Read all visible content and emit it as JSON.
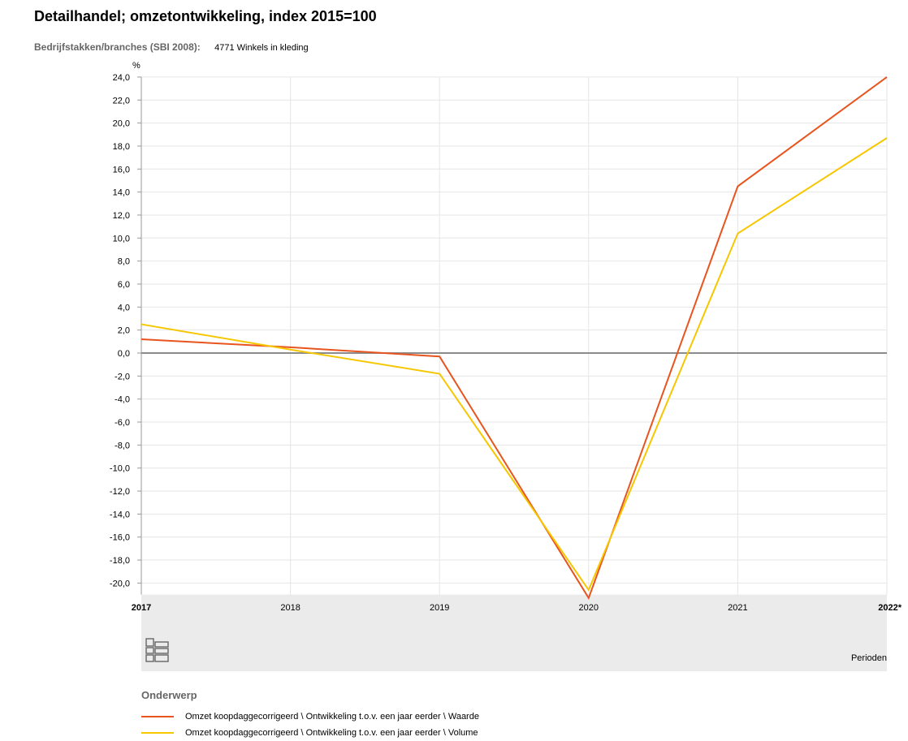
{
  "header": {
    "title": "Detailhandel; omzetontwikkeling, index 2015=100",
    "filter_label": "Bedrijfstakken/branches (SBI 2008):",
    "filter_value": "4771 Winkels in kleding"
  },
  "footer": {
    "periods_label": "Perioden",
    "logo_icon": "cbs-logo-icon"
  },
  "legend": {
    "title": "Onderwerp"
  },
  "colors": {
    "waarde": "#e8541e",
    "volume": "#f6c700",
    "zero_line": "#8c8c8c",
    "grid": "#e6e6e6",
    "footer_band": "#ebebeb"
  },
  "chart_data": {
    "type": "line",
    "title": "Detailhandel; omzetontwikkeling, index 2015=100",
    "ylabel": "%",
    "xlabel": "Perioden",
    "categories": [
      "2017",
      "2018",
      "2019",
      "2020",
      "2021",
      "2022*"
    ],
    "bold_categories": [
      "2017",
      "2022*"
    ],
    "ylim": [
      -21,
      24
    ],
    "yticks": [
      24,
      22,
      20,
      18,
      16,
      14,
      12,
      10,
      8,
      6,
      4,
      2,
      0,
      -2,
      -4,
      -6,
      -8,
      -10,
      -12,
      -14,
      -16,
      -18,
      -20
    ],
    "grid": true,
    "legend_position": "bottom",
    "series": [
      {
        "name": "Omzet koopdaggecorrigeerd \\ Ontwikkeling t.o.v. een jaar eerder \\ Waarde",
        "color": "#e8541e",
        "values": [
          1.2,
          0.5,
          -0.3,
          -21.3,
          14.5,
          24.0
        ]
      },
      {
        "name": "Omzet koopdaggecorrigeerd \\ Ontwikkeling t.o.v. een jaar eerder \\ Volume",
        "color": "#f6c700",
        "values": [
          2.5,
          0.3,
          -1.8,
          -20.6,
          10.4,
          18.7
        ]
      }
    ]
  }
}
